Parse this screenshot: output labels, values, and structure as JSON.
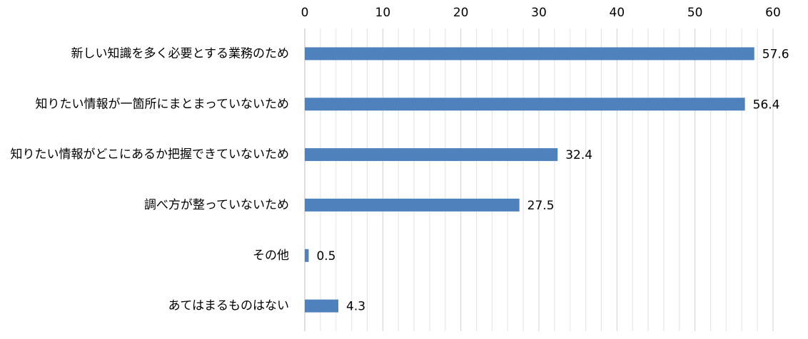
{
  "chart_data": {
    "type": "bar",
    "orientation": "horizontal",
    "categories": [
      "新しい知識を多く必要とする業務のため",
      "知りたい情報が一箇所にまとまっていないため",
      "知りたい情報がどこにあるか把握できていないため",
      "調べ方が整っていないため",
      "その他",
      "あてはまるものはない"
    ],
    "values": [
      57.6,
      56.4,
      32.4,
      27.5,
      0.5,
      4.3
    ],
    "color": "#4f81bd",
    "xlim": [
      0,
      60
    ],
    "xticks": [
      0,
      10,
      20,
      30,
      40,
      50,
      60
    ],
    "minor_xticks": [
      2,
      4,
      6,
      8,
      12,
      14,
      16,
      18,
      22,
      24,
      26,
      28,
      32,
      34,
      36,
      38,
      42,
      44,
      46,
      48,
      52,
      54,
      56,
      58
    ],
    "grid": true,
    "axis_position": "top"
  }
}
